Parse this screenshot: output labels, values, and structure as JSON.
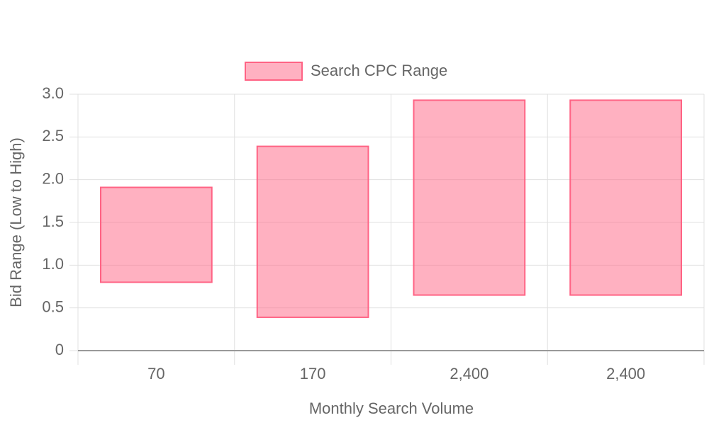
{
  "chart_data": {
    "type": "floating-bar",
    "x_label": "Monthly Search Volume",
    "y_label": "Bid Range (Low to High)",
    "categories": [
      "70",
      "170",
      "2,400",
      "2,400"
    ],
    "series": [
      {
        "name": "Search CPC Range",
        "color": "#ff6384",
        "values": [
          [
            0.8,
            1.91
          ],
          [
            0.39,
            2.39
          ],
          [
            0.65,
            2.93
          ],
          [
            0.65,
            2.93
          ]
        ]
      }
    ],
    "ylim": [
      0,
      3
    ],
    "yticks": [
      0,
      0.5,
      {
        "value": 1,
        "label": "1.0"
      },
      1.5,
      {
        "value": 2,
        "label": "2.0"
      },
      2.5,
      {
        "value": 3,
        "label": "3.0"
      }
    ],
    "grid": true,
    "legend": "top"
  }
}
